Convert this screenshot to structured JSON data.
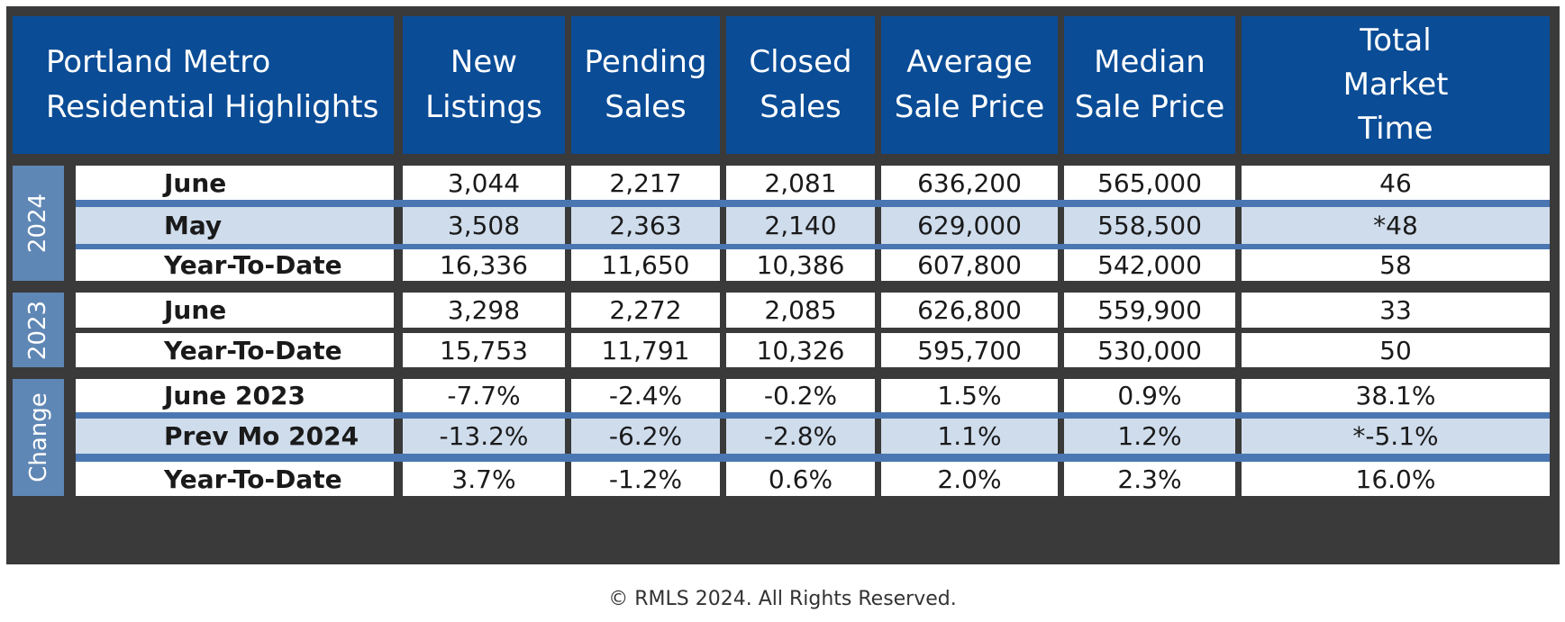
{
  "table": {
    "title": "Portland Metro\nResidential Highlights",
    "columns": [
      "New\nListings",
      "Pending\nSales",
      "Closed\nSales",
      "Average\nSale Price",
      "Median\nSale Price",
      "Total\nMarket\nTime"
    ],
    "groups": [
      {
        "label": "2024",
        "rows": [
          {
            "label": "June",
            "values": [
              "3,044",
              "2,217",
              "2,081",
              "636,200",
              "565,000",
              "46"
            ],
            "shaded": false
          },
          {
            "label": "May",
            "values": [
              "3,508",
              "2,363",
              "2,140",
              "629,000",
              "558,500",
              "*48"
            ],
            "shaded": true
          },
          {
            "label": "Year-To-Date",
            "values": [
              "16,336",
              "11,650",
              "10,386",
              "607,800",
              "542,000",
              "58"
            ],
            "shaded": false
          }
        ]
      },
      {
        "label": "2023",
        "rows": [
          {
            "label": "June",
            "values": [
              "3,298",
              "2,272",
              "2,085",
              "626,800",
              "559,900",
              "33"
            ],
            "shaded": false
          },
          {
            "label": "Year-To-Date",
            "values": [
              "15,753",
              "11,791",
              "10,326",
              "595,700",
              "530,000",
              "50"
            ],
            "shaded": false
          }
        ]
      },
      {
        "label": "Change",
        "rows": [
          {
            "label": "June 2023",
            "values": [
              "-7.7%",
              "-2.4%",
              "-0.2%",
              "1.5%",
              "0.9%",
              "38.1%"
            ],
            "shaded": false
          },
          {
            "label": "Prev Mo 2024",
            "values": [
              "-13.2%",
              "-6.2%",
              "-2.8%",
              "1.1%",
              "1.2%",
              "*-5.1%"
            ],
            "shaded": true
          },
          {
            "label": "Year-To-Date",
            "values": [
              "3.7%",
              "-1.2%",
              "0.6%",
              "2.0%",
              "2.3%",
              "16.0%"
            ],
            "shaded": false
          }
        ]
      }
    ]
  },
  "footer": {
    "copyright": "© RMLS 2024. All Rights Reserved."
  },
  "colors": {
    "header": "#0a4c96",
    "group_label": "#5f87b5",
    "shaded_row": "#cfdcec",
    "separator": "#4a77b2",
    "frame": "#3a3a3a"
  }
}
